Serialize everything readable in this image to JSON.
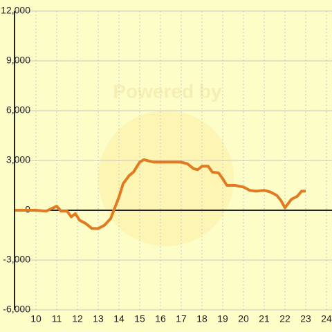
{
  "chart_data": {
    "type": "line",
    "watermark": "Powered by",
    "x": [
      9,
      10,
      10.5,
      11,
      11.2,
      11.5,
      11.7,
      11.9,
      12.1,
      12.4,
      12.7,
      13.0,
      13.3,
      13.6,
      14.0,
      14.2,
      14.5,
      14.7,
      15.0,
      15.2,
      15.5,
      15.7,
      16.0,
      16.5,
      17.0,
      17.3,
      17.6,
      17.8,
      18.0,
      18.3,
      18.5,
      18.8,
      19.0,
      19.2,
      19.6,
      20.0,
      20.3,
      20.6,
      21.0,
      21.3,
      21.6,
      21.8,
      22.0,
      22.3,
      22.6,
      22.8,
      23.0
    ],
    "series": [
      {
        "color": "#e07b22",
        "values": [
          0,
          0,
          -50,
          250,
          -50,
          -50,
          -400,
          -200,
          -600,
          -800,
          -1100,
          -1100,
          -900,
          -500,
          800,
          1600,
          2100,
          2300,
          2900,
          3050,
          2950,
          2900,
          2900,
          2900,
          2900,
          2800,
          2500,
          2450,
          2650,
          2650,
          2300,
          2250,
          1900,
          1500,
          1500,
          1400,
          1200,
          1150,
          1200,
          1100,
          900,
          600,
          150,
          650,
          850,
          1150,
          1150
        ]
      }
    ],
    "xlim": [
      9,
      24.3
    ],
    "xticks": [
      10,
      11,
      12,
      13,
      14,
      15,
      16,
      17,
      18,
      19,
      20,
      21,
      22,
      23,
      24
    ],
    "ylim": [
      -6000,
      12000
    ],
    "yticks": [
      {
        "value": -6000,
        "label": "-6,000"
      },
      {
        "value": -3000,
        "label": "-3,000"
      },
      0,
      {
        "value": 3000,
        "label": "3,000"
      },
      {
        "value": 6000,
        "label": "6,000"
      },
      {
        "value": 9000,
        "label": "9,000"
      },
      {
        "value": 12000,
        "label": "12,000"
      }
    ],
    "grid": true
  }
}
